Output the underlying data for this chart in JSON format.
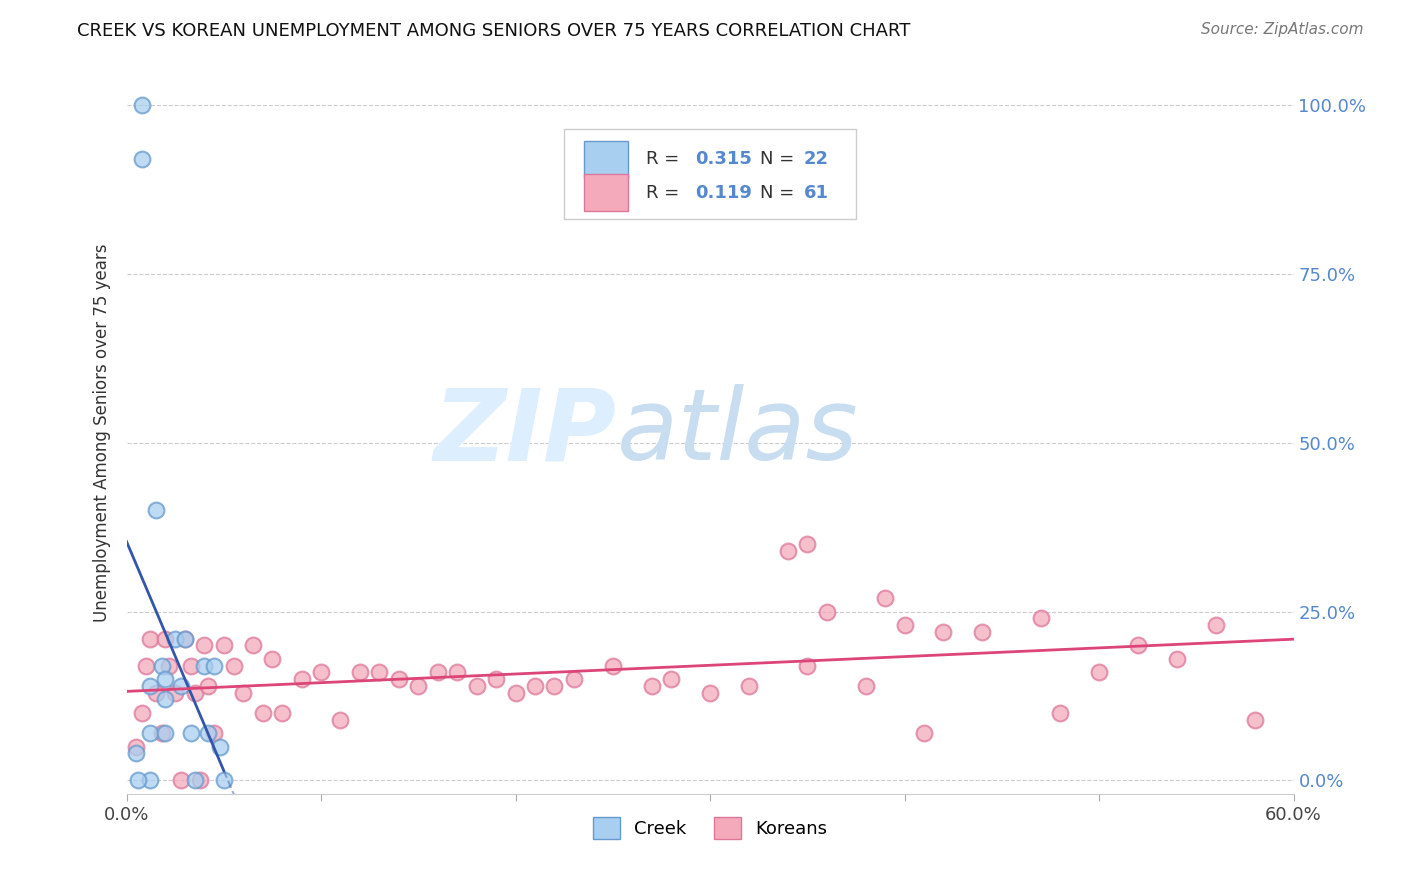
{
  "title": "CREEK VS KOREAN UNEMPLOYMENT AMONG SENIORS OVER 75 YEARS CORRELATION CHART",
  "source": "Source: ZipAtlas.com",
  "ylabel": "Unemployment Among Seniors over 75 years",
  "xlim": [
    0.0,
    0.6
  ],
  "ylim": [
    -0.02,
    1.05
  ],
  "yticks_right": [
    0.0,
    0.25,
    0.5,
    0.75,
    1.0
  ],
  "yticklabels_right": [
    "0.0%",
    "25.0%",
    "50.0%",
    "75.0%",
    "100.0%"
  ],
  "creek_color": "#a8cff0",
  "creek_edge_color": "#6699cc",
  "korean_color": "#f4aabb",
  "korean_edge_color": "#dd7799",
  "creek_line_color": "#3355aa",
  "korean_line_color": "#dd4477",
  "grid_color": "#cccccc",
  "background_color": "#ffffff",
  "creek_R": 0.315,
  "creek_N": 22,
  "korean_R": 0.119,
  "korean_N": 61,
  "creek_x": [
    0.008,
    0.008,
    0.012,
    0.012,
    0.012,
    0.015,
    0.018,
    0.02,
    0.02,
    0.02,
    0.025,
    0.028,
    0.03,
    0.033,
    0.035,
    0.04,
    0.042,
    0.045,
    0.048,
    0.05,
    0.005,
    0.006
  ],
  "creek_y": [
    1.0,
    0.92,
    0.14,
    0.07,
    0.0,
    0.4,
    0.17,
    0.15,
    0.12,
    0.07,
    0.21,
    0.14,
    0.21,
    0.07,
    0.0,
    0.17,
    0.07,
    0.17,
    0.05,
    0.0,
    0.04,
    0.0
  ],
  "korean_x": [
    0.005,
    0.008,
    0.01,
    0.012,
    0.015,
    0.018,
    0.02,
    0.022,
    0.025,
    0.028,
    0.03,
    0.033,
    0.035,
    0.038,
    0.04,
    0.042,
    0.045,
    0.05,
    0.055,
    0.06,
    0.065,
    0.07,
    0.075,
    0.08,
    0.09,
    0.1,
    0.11,
    0.12,
    0.13,
    0.14,
    0.15,
    0.16,
    0.17,
    0.18,
    0.19,
    0.2,
    0.21,
    0.22,
    0.23,
    0.25,
    0.27,
    0.28,
    0.3,
    0.32,
    0.34,
    0.35,
    0.36,
    0.38,
    0.4,
    0.42,
    0.44,
    0.47,
    0.5,
    0.52,
    0.54,
    0.56,
    0.58,
    0.39,
    0.41,
    0.48,
    0.35
  ],
  "korean_y": [
    0.05,
    0.1,
    0.17,
    0.21,
    0.13,
    0.07,
    0.21,
    0.17,
    0.13,
    0.0,
    0.21,
    0.17,
    0.13,
    0.0,
    0.2,
    0.14,
    0.07,
    0.2,
    0.17,
    0.13,
    0.2,
    0.1,
    0.18,
    0.1,
    0.15,
    0.16,
    0.09,
    0.16,
    0.16,
    0.15,
    0.14,
    0.16,
    0.16,
    0.14,
    0.15,
    0.13,
    0.14,
    0.14,
    0.15,
    0.17,
    0.14,
    0.15,
    0.13,
    0.14,
    0.34,
    0.17,
    0.25,
    0.14,
    0.23,
    0.22,
    0.22,
    0.24,
    0.16,
    0.2,
    0.18,
    0.23,
    0.09,
    0.27,
    0.07,
    0.1,
    0.35
  ]
}
